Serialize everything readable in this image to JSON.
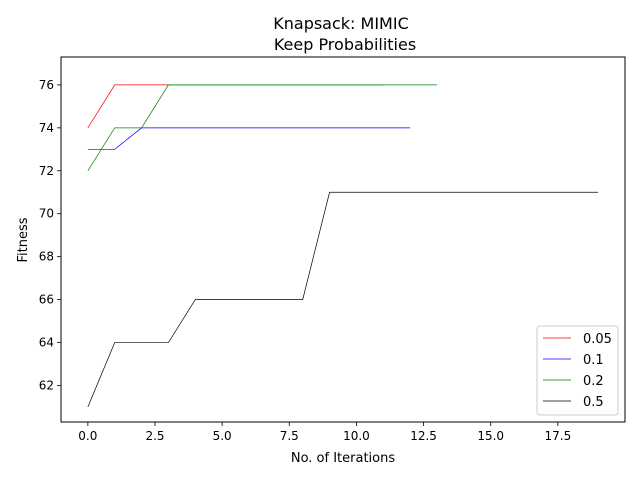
{
  "chart_data": {
    "type": "line",
    "title": "Knapsack: MIMIC",
    "subtitle": "Keep Probabilities",
    "xlabel": "No. of Iterations",
    "ylabel": "Fitness",
    "xlim": [
      -1,
      20
    ],
    "ylim": [
      60.3,
      77.3
    ],
    "xticks": [
      0.0,
      2.5,
      5.0,
      7.5,
      10.0,
      12.5,
      15.0,
      17.5
    ],
    "xtick_labels": [
      "0.0",
      "2.5",
      "5.0",
      "7.5",
      "10.0",
      "12.5",
      "15.0",
      "17.5"
    ],
    "yticks": [
      62,
      64,
      66,
      68,
      70,
      72,
      74,
      76
    ],
    "ytick_labels": [
      "62",
      "64",
      "66",
      "68",
      "70",
      "72",
      "74",
      "76"
    ],
    "grid": false,
    "legend_position": "lower-right",
    "series": [
      {
        "name": "0.05",
        "color": "#ff0000",
        "x": [
          0,
          1,
          2,
          3,
          4,
          5,
          6,
          7,
          8,
          9,
          10,
          11
        ],
        "y": [
          74,
          76,
          76,
          76,
          76,
          76,
          76,
          76,
          76,
          76,
          76,
          76
        ]
      },
      {
        "name": "0.1",
        "color": "#0000ff",
        "x": [
          0,
          1,
          2,
          3,
          4,
          5,
          6,
          7,
          8,
          9,
          10,
          11,
          12
        ],
        "y": [
          73,
          73,
          74,
          74,
          74,
          74,
          74,
          74,
          74,
          74,
          74,
          74,
          74
        ]
      },
      {
        "name": "0.2",
        "color": "#008000",
        "x": [
          0,
          1,
          2,
          3,
          4,
          5,
          6,
          7,
          8,
          9,
          10,
          11,
          12,
          13
        ],
        "y": [
          72,
          74,
          74,
          76,
          76,
          76,
          76,
          76,
          76,
          76,
          76,
          76,
          76,
          76
        ]
      },
      {
        "name": "0.5",
        "color": "#000000",
        "x": [
          0,
          1,
          2,
          3,
          4,
          5,
          6,
          7,
          8,
          9,
          10,
          11,
          12,
          13,
          14,
          15,
          16,
          17,
          18,
          19
        ],
        "y": [
          61,
          64,
          64,
          64,
          66,
          66,
          66,
          66,
          66,
          71,
          71,
          71,
          71,
          71,
          71,
          71,
          71,
          71,
          71,
          71
        ]
      }
    ]
  }
}
